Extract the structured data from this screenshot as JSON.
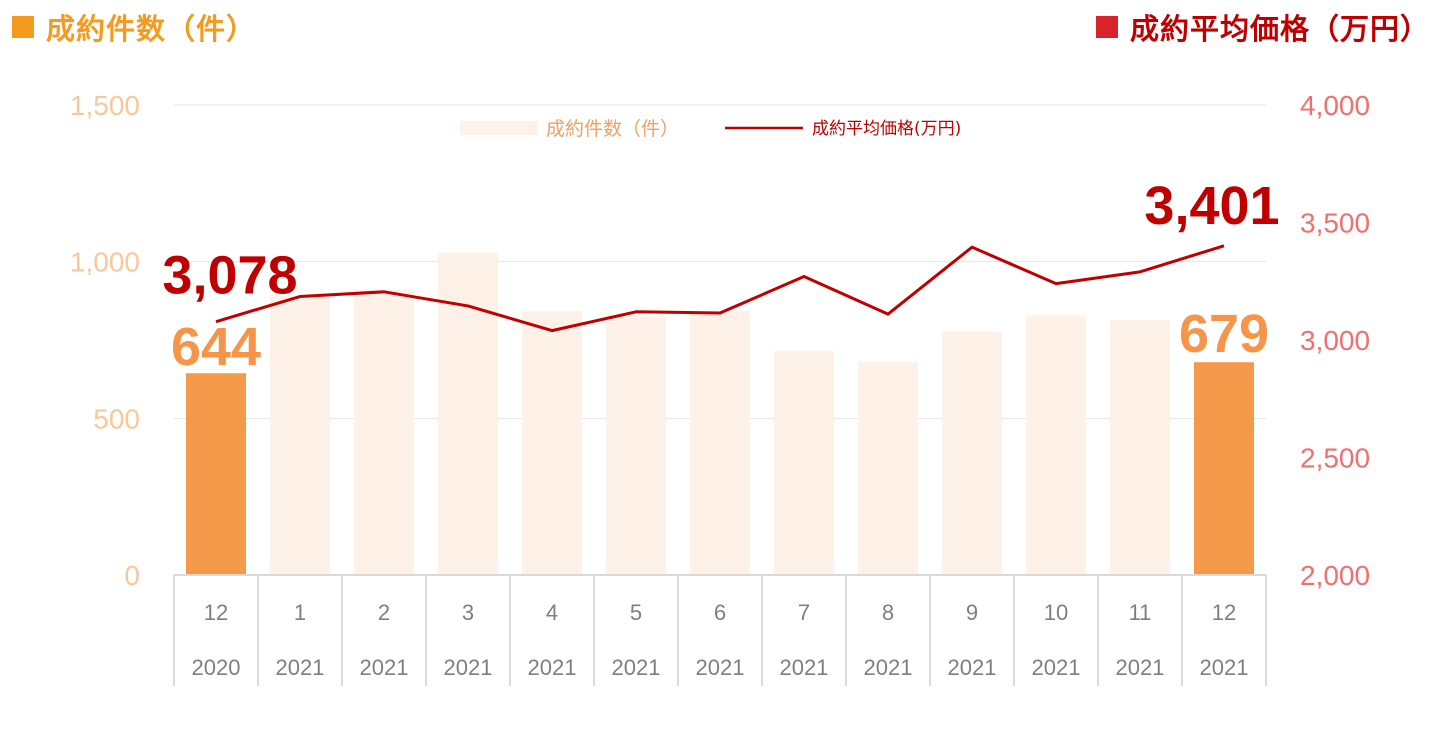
{
  "header": {
    "left_title": "成約件数（件）",
    "right_title": "成約平均価格（万円）"
  },
  "colors": {
    "bar_highlight": "#f5994a",
    "bar_muted": "#fdf1e8",
    "line": "#c00000",
    "left_axis": "#f8c89a",
    "right_axis": "#ef7070"
  },
  "chart_data": {
    "type": "bar",
    "legend": {
      "bar_label": "成約件数（件）",
      "line_label": "成約平均価格(万円)",
      "placement": "top-center"
    },
    "categories": [
      {
        "month": "12",
        "year": "2020"
      },
      {
        "month": "1",
        "year": "2021"
      },
      {
        "month": "2",
        "year": "2021"
      },
      {
        "month": "3",
        "year": "2021"
      },
      {
        "month": "4",
        "year": "2021"
      },
      {
        "month": "5",
        "year": "2021"
      },
      {
        "month": "6",
        "year": "2021"
      },
      {
        "month": "7",
        "year": "2021"
      },
      {
        "month": "8",
        "year": "2021"
      },
      {
        "month": "9",
        "year": "2021"
      },
      {
        "month": "10",
        "year": "2021"
      },
      {
        "month": "11",
        "year": "2021"
      },
      {
        "month": "12",
        "year": "2021"
      }
    ],
    "bars": {
      "values": [
        644,
        893,
        911,
        1029,
        842,
        826,
        842,
        716,
        681,
        776,
        829,
        813,
        679
      ],
      "highlighted": [
        true,
        false,
        false,
        false,
        false,
        false,
        false,
        false,
        false,
        false,
        false,
        false,
        true
      ]
    },
    "line": {
      "values": [
        3078,
        3185,
        3205,
        3145,
        3040,
        3120,
        3115,
        3270,
        3110,
        3395,
        3240,
        3290,
        3401
      ]
    },
    "y_left": {
      "min": 0,
      "max": 1500,
      "ticks": [
        "0",
        "500",
        "1,000",
        "1,500"
      ],
      "tick_values": [
        0,
        500,
        1000,
        1500
      ]
    },
    "y_right": {
      "min": 2000,
      "max": 4000,
      "ticks": [
        "2,000",
        "2,500",
        "3,000",
        "3,500",
        "4,000"
      ],
      "tick_values": [
        2000,
        2500,
        3000,
        3500,
        4000
      ]
    },
    "annotations": {
      "first_price": "3,078",
      "last_price": "3,401",
      "first_count": "644",
      "last_count": "679"
    },
    "grid": true
  }
}
